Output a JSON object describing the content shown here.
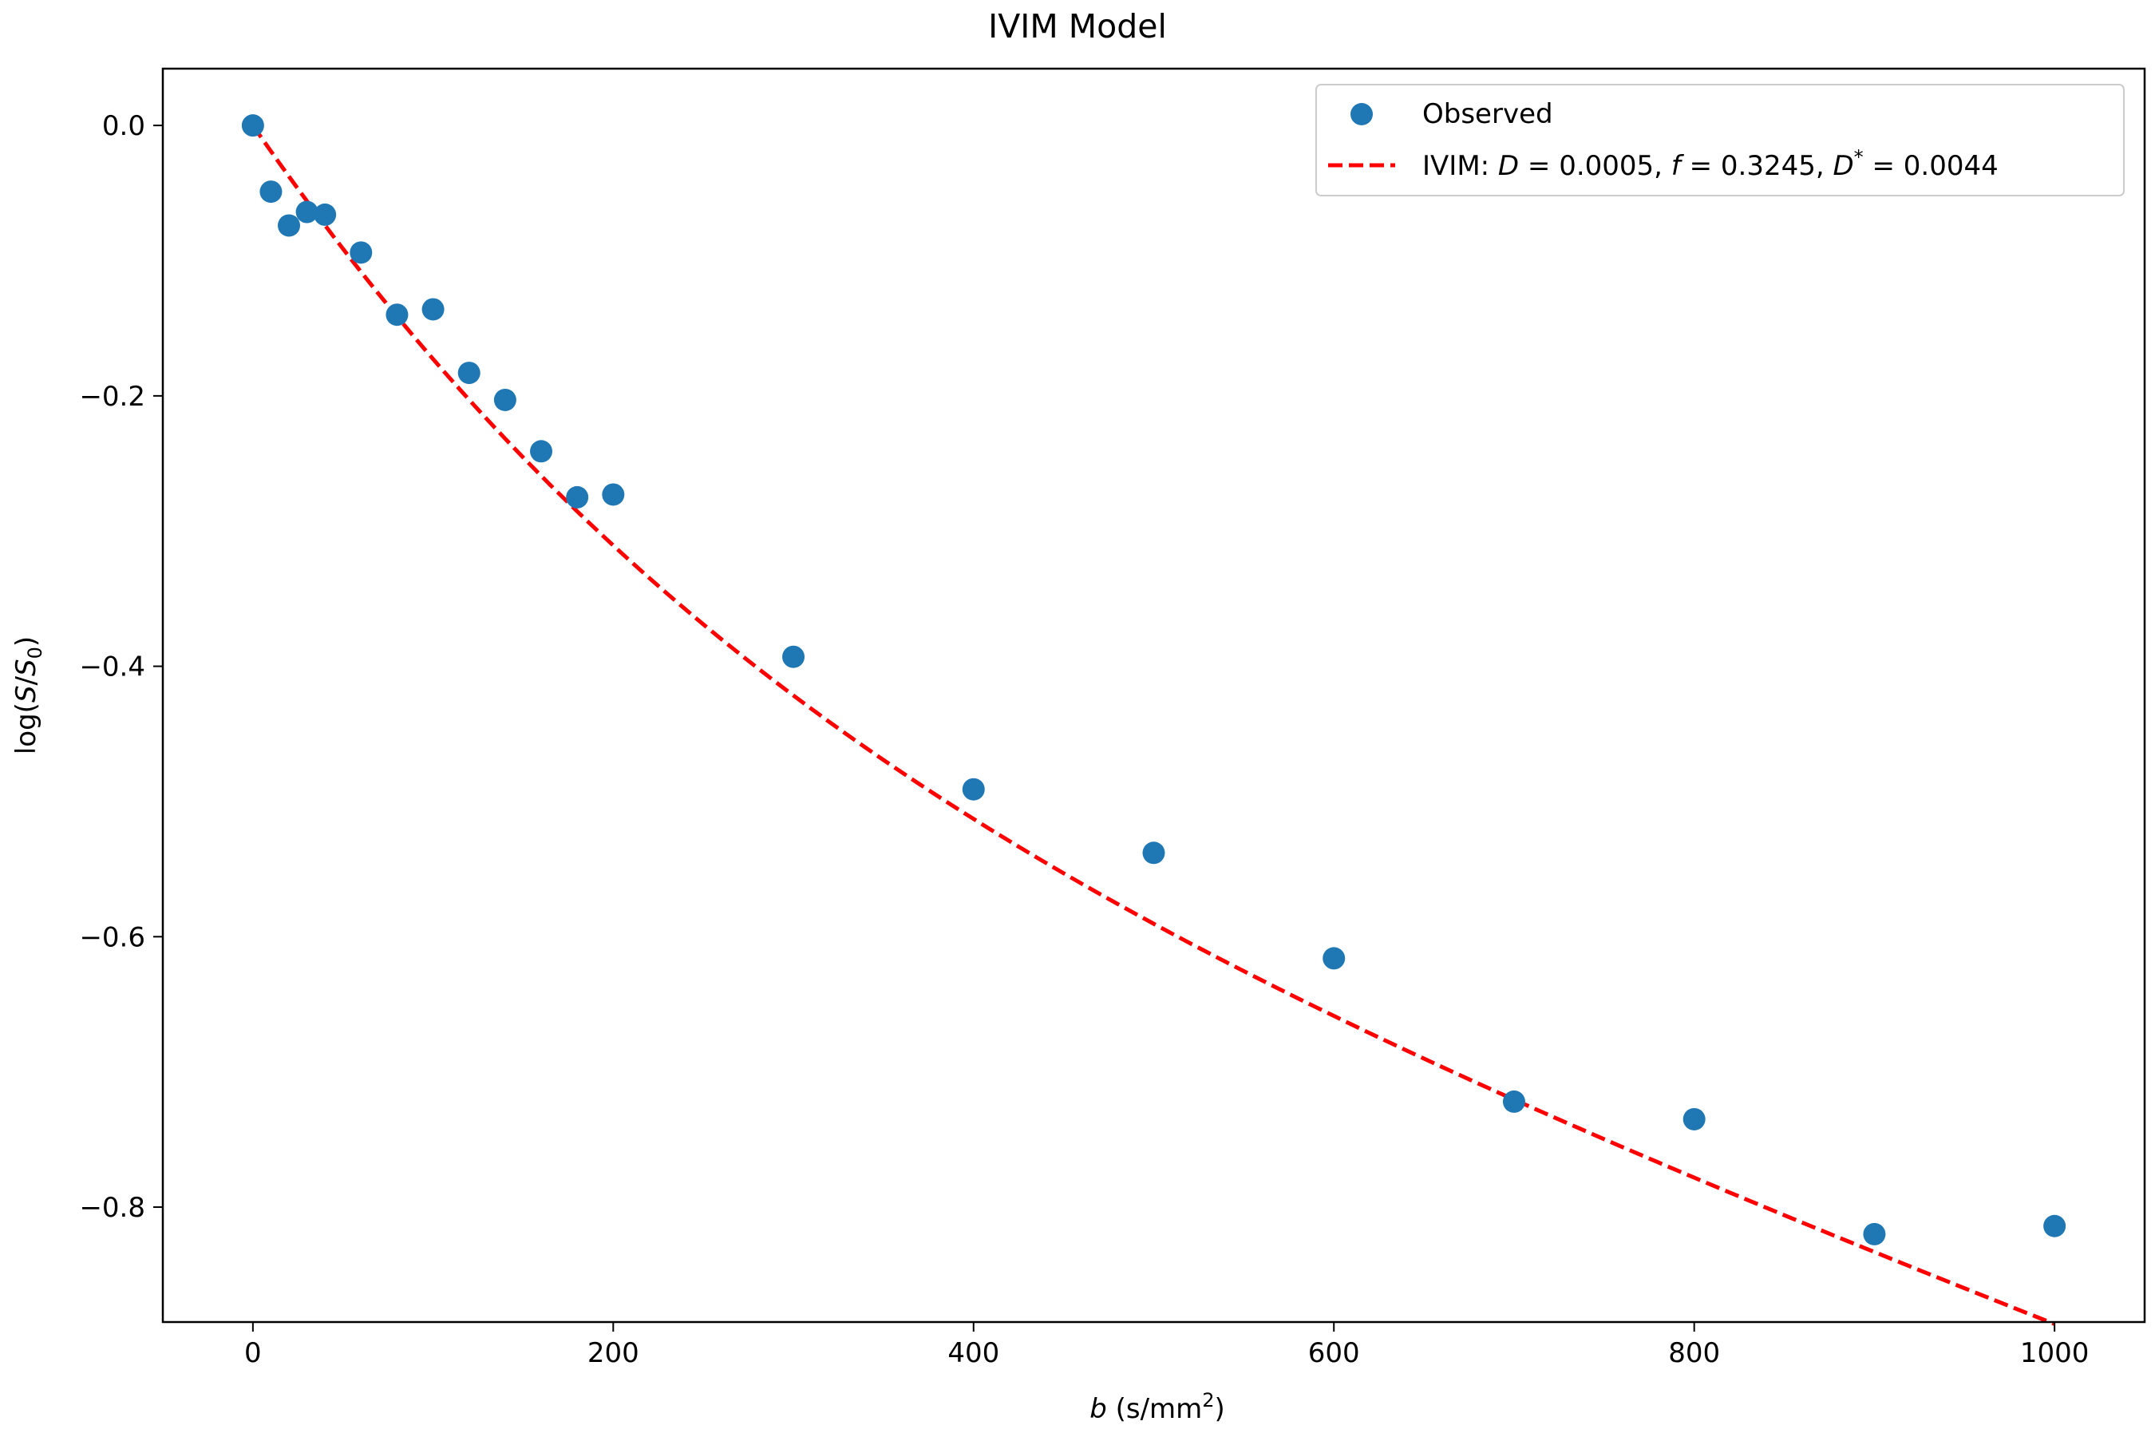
{
  "chart_data": {
    "type": "scatter",
    "title": "IVIM Model",
    "xlabel": {
      "var": "b",
      "unit_prefix": " (s/mm",
      "unit_sup": "2",
      "unit_suffix": ")"
    },
    "ylabel": {
      "prefix": "log(",
      "num": "S",
      "slash": "/",
      "den": "S",
      "den_sub": "0",
      "suffix": ")"
    },
    "xlim": [
      -50,
      1050
    ],
    "ylim": [
      -0.885,
      0.042
    ],
    "xticks": [
      0,
      200,
      400,
      600,
      800,
      1000
    ],
    "xtick_labels": [
      "0",
      "200",
      "400",
      "600",
      "800",
      "1000"
    ],
    "yticks": [
      0.0,
      -0.2,
      -0.4,
      -0.6,
      -0.8
    ],
    "ytick_labels": [
      "0.0",
      "−0.2",
      "−0.4",
      "−0.6",
      "−0.8"
    ],
    "grid": false,
    "legend_position": "top-right",
    "colors": {
      "observed": "#1f77b4",
      "fit": "#ff0000"
    },
    "series": [
      {
        "name": "Observed",
        "kind": "scatter",
        "x": [
          0,
          10,
          20,
          30,
          40,
          60,
          80,
          100,
          120,
          140,
          160,
          180,
          200,
          300,
          400,
          500,
          600,
          700,
          800,
          900,
          1000
        ],
        "y": [
          0.0,
          -0.049,
          -0.074,
          -0.064,
          -0.066,
          -0.094,
          -0.14,
          -0.136,
          -0.183,
          -0.203,
          -0.241,
          -0.275,
          -0.273,
          -0.393,
          -0.491,
          -0.538,
          -0.616,
          -0.722,
          -0.735,
          -0.82,
          -0.814
        ]
      },
      {
        "name": "IVIM",
        "kind": "line",
        "style": "dashed",
        "legend_label": {
          "prefix": "IVIM: ",
          "p1": "D",
          "e1": " = 0.0005, ",
          "p2": "f",
          "e2": " = 0.3245, ",
          "p3": "D",
          "p3_sup": "*",
          "e3": " = 0.0044"
        },
        "params": {
          "D": 0.0005,
          "f": 0.3245,
          "D_star": 0.0044
        },
        "x_range": [
          0,
          1000
        ]
      }
    ]
  }
}
